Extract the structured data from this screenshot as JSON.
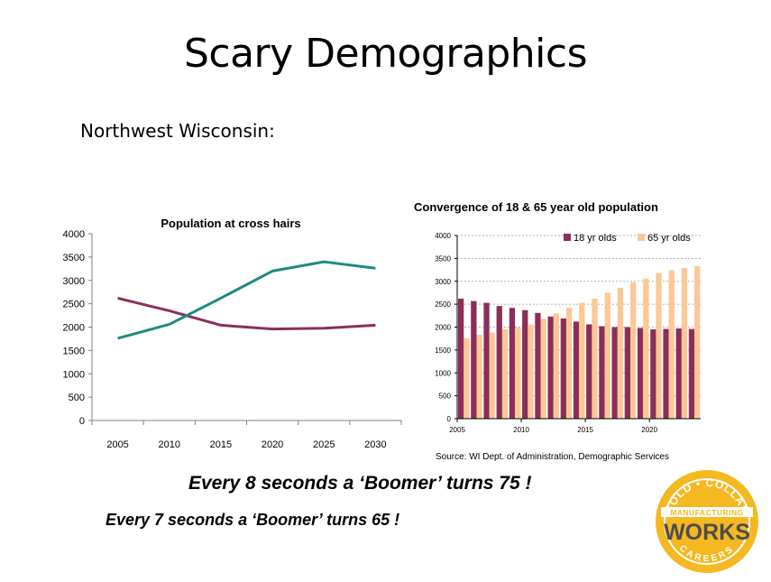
{
  "slide": {
    "title": "Scary Demographics",
    "subtitle": "Northwest Wisconsin:",
    "line1": "Every 8 seconds a ‘Boomer’ turns 75 !",
    "line2": "Every 7 seconds a ‘Boomer’ turns 65 !"
  },
  "logo": {
    "top_text": "GOLD • COLLAR",
    "band_text": "MANUFACTURING",
    "main_text": "WORKS",
    "bottom_text": "CAREERS",
    "colors": {
      "gold": "#f5b821",
      "dark": "#4d4d4f",
      "white": "#ffffff"
    }
  },
  "chart_data": [
    {
      "type": "line",
      "title": "Population at cross hairs",
      "categories": [
        "2005",
        "2010",
        "2015",
        "2020",
        "2025",
        "2030"
      ],
      "ylim": [
        0,
        4000
      ],
      "yticks": [
        0,
        500,
        1000,
        1500,
        2000,
        2500,
        3000,
        3500,
        4000
      ],
      "grid": false,
      "series": [
        {
          "values": [
            2620,
            2350,
            2040,
            1960,
            1975,
            2040
          ],
          "color": "#8b2e5a"
        },
        {
          "values": [
            1760,
            2060,
            2620,
            3200,
            3400,
            3260
          ],
          "color": "#1f8a82"
        }
      ]
    },
    {
      "type": "bar",
      "title": "Convergence of 18 & 65 year old population",
      "x": [
        2005,
        2006,
        2007,
        2008,
        2009,
        2010,
        2011,
        2012,
        2013,
        2014,
        2015,
        2016,
        2017,
        2018,
        2019,
        2020,
        2021,
        2022,
        2023
      ],
      "xtick_labels": [
        "2005",
        "2010",
        "2015",
        "2020"
      ],
      "ylim": [
        0,
        4000
      ],
      "yticks": [
        0,
        500,
        1000,
        1500,
        2000,
        2500,
        3000,
        3500,
        4000
      ],
      "grid": true,
      "legend_position": "top-right",
      "series": [
        {
          "name": "18 yr olds",
          "color": "#8b2e5a",
          "values": [
            2620,
            2570,
            2530,
            2460,
            2420,
            2370,
            2310,
            2230,
            2190,
            2120,
            2060,
            2020,
            2000,
            2000,
            1980,
            1950,
            1960,
            1970,
            1960
          ]
        },
        {
          "name": "65 yr olds",
          "color": "#fbc896",
          "values": [
            1760,
            1830,
            1880,
            1950,
            1990,
            2060,
            2180,
            2300,
            2420,
            2530,
            2620,
            2750,
            2860,
            2980,
            3060,
            3180,
            3240,
            3290,
            3330
          ]
        }
      ],
      "source": "Source: WI Dept. of Administration, Demographic Services"
    }
  ]
}
